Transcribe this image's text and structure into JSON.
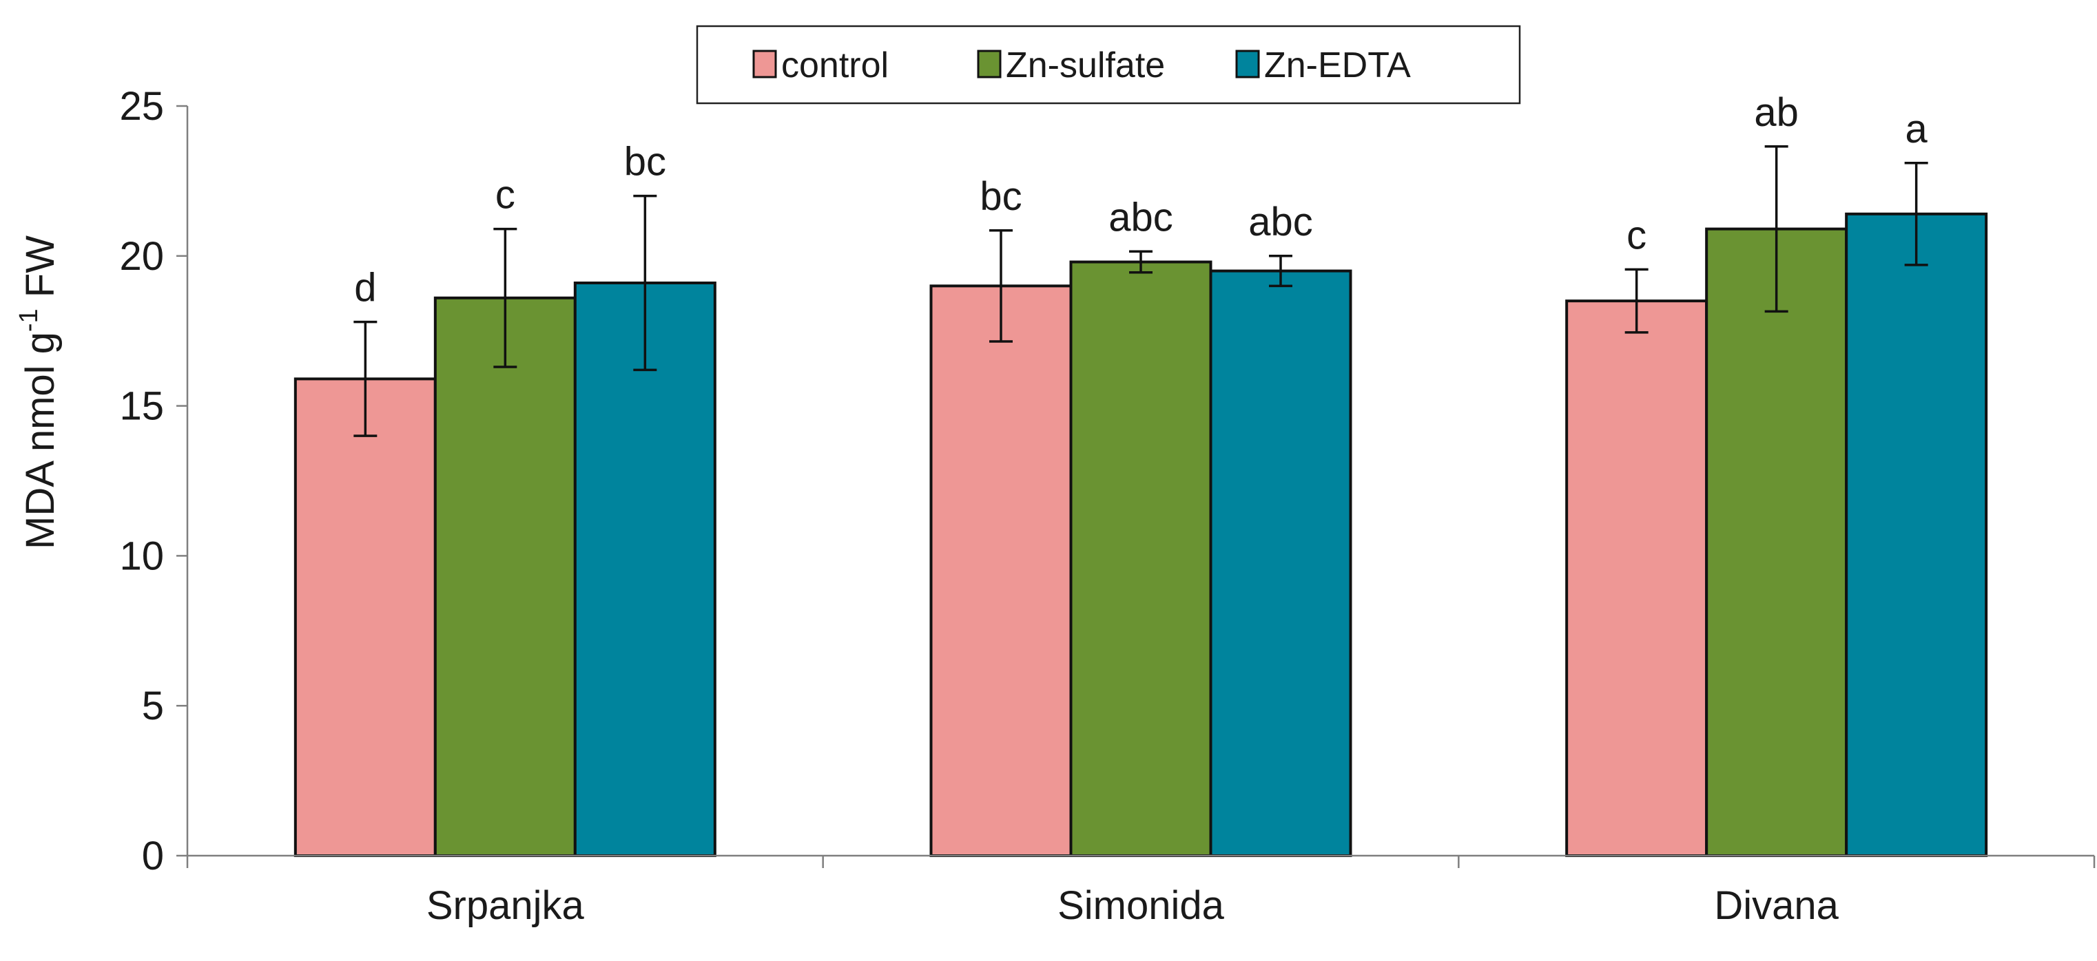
{
  "chart_data": {
    "type": "bar",
    "categories": [
      "Srpanjka",
      "Simonida",
      "Divana"
    ],
    "series": [
      {
        "name": "control",
        "color": "#EE9795",
        "values": [
          15.9,
          19.0,
          18.5
        ],
        "errors": [
          1.9,
          1.85,
          1.05
        ],
        "labels": [
          "d",
          "bc",
          "c"
        ]
      },
      {
        "name": "Zn-sulfate",
        "color": "#6A9332",
        "values": [
          18.6,
          19.8,
          20.9
        ],
        "errors": [
          2.3,
          0.35,
          2.75
        ],
        "labels": [
          "c",
          "abc",
          "ab"
        ]
      },
      {
        "name": "Zn-EDTA",
        "color": "#00849D",
        "values": [
          19.1,
          19.5,
          21.4
        ],
        "errors": [
          2.9,
          0.5,
          1.7
        ],
        "labels": [
          "bc",
          "abc",
          "a"
        ]
      }
    ],
    "title": "",
    "xlabel": "",
    "ylabel": "MDA nmol g",
    "ylabel_sup": "-1",
    "ylabel_suffix": " FW",
    "ylim": [
      0,
      25
    ],
    "yticks": [
      "0",
      "5",
      "10",
      "15",
      "20",
      "25"
    ],
    "grid": false,
    "legend_position": "top"
  }
}
